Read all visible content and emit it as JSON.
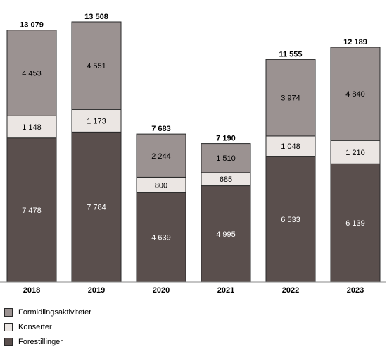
{
  "chart_data": {
    "type": "bar",
    "stacked": true,
    "categories": [
      "2018",
      "2019",
      "2020",
      "2021",
      "2022",
      "2023"
    ],
    "series": [
      {
        "name": "Forestillinger",
        "values": [
          7478,
          7784,
          4639,
          4995,
          6533,
          6139
        ],
        "labels": [
          "7 478",
          "7 784",
          "4 639",
          "4 995",
          "6 533",
          "6 139"
        ],
        "color": "#5a4f4d"
      },
      {
        "name": "Konserter",
        "values": [
          1148,
          1173,
          800,
          685,
          1048,
          1210
        ],
        "labels": [
          "1 148",
          "1 173",
          "800",
          "685",
          "1 048",
          "1 210"
        ],
        "color": "#ebe6e3"
      },
      {
        "name": "Formidlingsaktiviteter",
        "values": [
          4453,
          4551,
          2244,
          1510,
          3974,
          4840
        ],
        "labels": [
          "4 453",
          "4 551",
          "2 244",
          "1 510",
          "3 974",
          "4 840"
        ],
        "color": "#9b9291"
      }
    ],
    "totals": [
      13079,
      13508,
      7683,
      7190,
      11555,
      12189
    ],
    "total_labels": [
      "13 079",
      "13 508",
      "7 683",
      "7 190",
      "11 555",
      "12 189"
    ],
    "ylim": [
      0,
      13508
    ],
    "grid": false,
    "legend_position": "bottom-left"
  },
  "legend": [
    {
      "label": "Formidlingsaktiviteter",
      "color": "#9b9291"
    },
    {
      "label": "Konserter",
      "color": "#ebe6e3"
    },
    {
      "label": "Forestillinger",
      "color": "#5a4f4d"
    }
  ]
}
